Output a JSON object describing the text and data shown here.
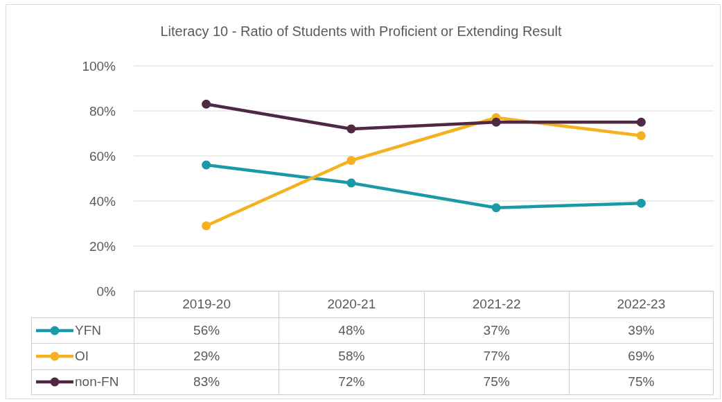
{
  "chart_data": {
    "type": "line",
    "title": "Literacy 10 -  Ratio of Students with Proficient or Extending Result",
    "categories": [
      "2019-20",
      "2020-21",
      "2021-22",
      "2022-23"
    ],
    "series": [
      {
        "name": "YFN",
        "color": "#1a9aa8",
        "values": [
          56,
          48,
          37,
          39
        ],
        "value_labels": [
          "56%",
          "48%",
          "37%",
          "39%"
        ]
      },
      {
        "name": "OI",
        "color": "#f5b120",
        "values": [
          29,
          58,
          77,
          69
        ],
        "value_labels": [
          "29%",
          "58%",
          "77%",
          "69%"
        ]
      },
      {
        "name": "non-FN",
        "color": "#4f2943",
        "values": [
          83,
          72,
          75,
          75
        ],
        "value_labels": [
          "83%",
          "72%",
          "75%",
          "75%"
        ]
      }
    ],
    "ylim": [
      0,
      100
    ],
    "yticks": [
      {
        "value": 0,
        "label": "0%"
      },
      {
        "value": 20,
        "label": "20%"
      },
      {
        "value": 40,
        "label": "40%"
      },
      {
        "value": 60,
        "label": "60%"
      },
      {
        "value": 80,
        "label": "80%"
      },
      {
        "value": 100,
        "label": "100%"
      }
    ],
    "grid": "y",
    "legend": "bottom",
    "marker": "circle",
    "line_style": "solid"
  }
}
